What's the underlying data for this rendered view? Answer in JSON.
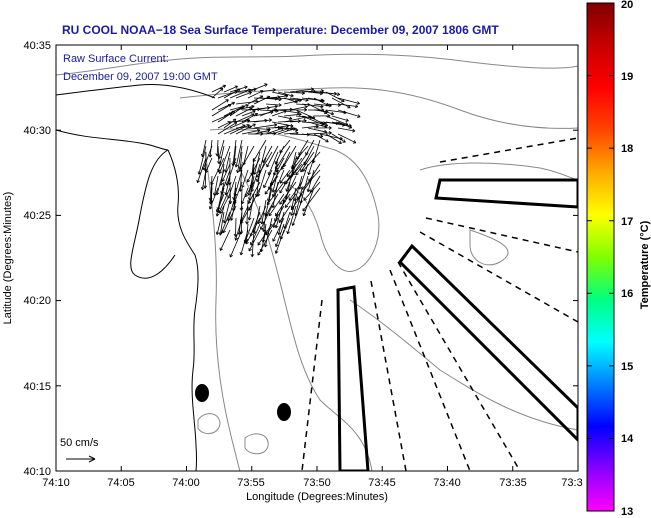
{
  "title": "RU COOL  NOAA−18  Sea Surface Temperature:  December 09, 2007 1806 GMT",
  "current_caption": {
    "line1": "Raw Surface Current:",
    "line2": "December 09, 2007 19:00 GMT"
  },
  "scale_label": "50 cm/s",
  "axes": {
    "xlabel": "Longitude (Degrees:Minutes)",
    "ylabel": "Latitude (Degrees:Minutes)",
    "xticks": [
      "74:10",
      "74:05",
      "74:00",
      "73:55",
      "73:50",
      "73:45",
      "73:40",
      "73:35",
      "73:3"
    ],
    "yticks": [
      "40:35",
      "40:30",
      "40:25",
      "40:20",
      "40:15",
      "40:10"
    ]
  },
  "colorbar": {
    "label": "Temperature (°C)",
    "min": 13,
    "max": 20,
    "ticks": [
      "20",
      "19",
      "18",
      "17",
      "16",
      "15",
      "14",
      "13"
    ],
    "colors": [
      "#ff00ff",
      "#8800ff",
      "#0000ff",
      "#0080ff",
      "#00ffff",
      "#00ff80",
      "#80ff00",
      "#ffff00",
      "#ffaa00",
      "#ff4400",
      "#ff0000",
      "#c80000",
      "#800000"
    ]
  },
  "colors": {
    "title": "#1a1aa6",
    "contour": "#888888",
    "coast": "#000000"
  }
}
